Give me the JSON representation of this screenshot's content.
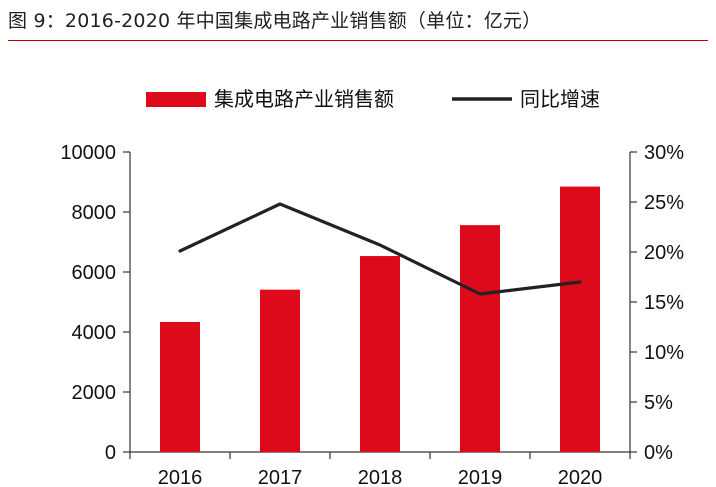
{
  "figure": {
    "title": "图 9：2016-2020 年中国集成电路产业销售额（单位：亿元）",
    "accent_color": "#c00000"
  },
  "chart_data": {
    "type": "bar",
    "categories": [
      "2016",
      "2017",
      "2018",
      "2019",
      "2020"
    ],
    "series": [
      {
        "name": "集成电路产业销售额",
        "type": "bar",
        "axis": "left",
        "color": "#dd0a1b",
        "values": [
          4335,
          5411,
          6532,
          7562,
          8848
        ]
      },
      {
        "name": "同比增速",
        "type": "line",
        "axis": "right",
        "color": "#222222",
        "values": [
          20.1,
          24.8,
          20.7,
          15.8,
          17.0
        ]
      }
    ],
    "y_left": {
      "ylim": [
        0,
        10000
      ],
      "ticks": [
        0,
        2000,
        4000,
        6000,
        8000,
        10000
      ],
      "tick_labels": [
        "0",
        "2000",
        "4000",
        "6000",
        "8000",
        "10000"
      ]
    },
    "y_right": {
      "ylim": [
        0,
        30
      ],
      "ticks": [
        0,
        5,
        10,
        15,
        20,
        25,
        30
      ],
      "tick_labels": [
        "0%",
        "5%",
        "10%",
        "15%",
        "20%",
        "25%",
        "30%"
      ]
    },
    "legend_position": "top",
    "grid": false
  }
}
